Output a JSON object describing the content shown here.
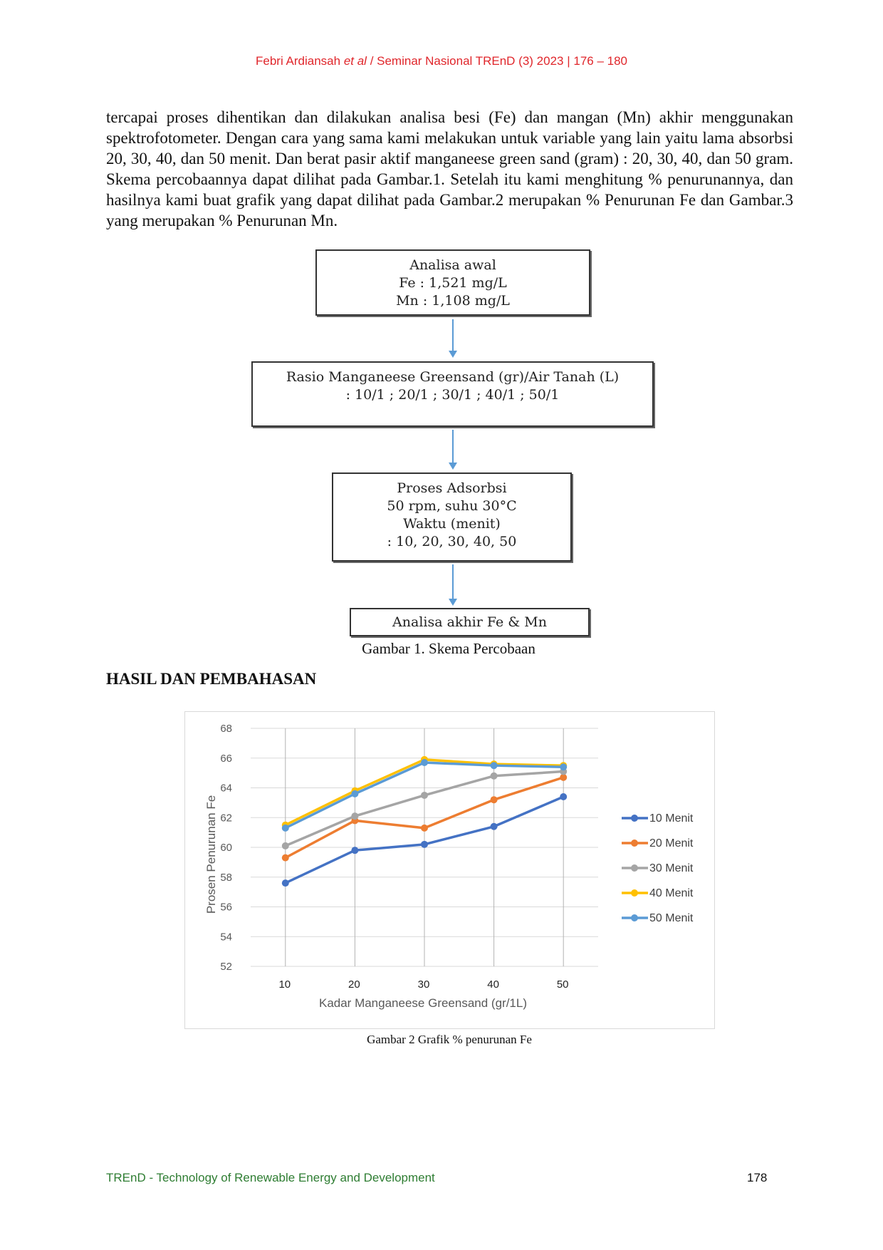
{
  "header": {
    "author": "Febri Ardiansah",
    "et_al": "et al",
    "citation": "/ Seminar Nasional TREnD (3) 2023 | 176 – 180"
  },
  "body": {
    "paragraph": "tercapai proses dihentikan dan dilakukan analisa besi (Fe) dan mangan (Mn) akhir menggunakan spektrofotometer. Dengan cara yang sama kami melakukan untuk variable yang lain yaitu  lama absorbsi 20, 30, 40, dan 50 menit.  Dan berat pasir aktif manganeese green sand (gram) : 20, 30, 40, dan 50 gram. Skema percobaannya dapat dilihat pada Gambar.1. Setelah itu kami menghitung % penurunannya, dan hasilnya kami buat grafik yang dapat dilihat pada Gambar.2 merupakan % Penurunan Fe  dan Gambar.3 yang merupakan % Penurunan Mn."
  },
  "flowchart": {
    "box1": [
      "Analisa awal",
      "Fe  : 1,521  mg/L",
      "Mn : 1,108 mg/L"
    ],
    "box2": [
      "Rasio Manganeese Greensand (gr)/Air Tanah (L)",
      ": 10/1 ; 20/1 ; 30/1 ; 40/1 ; 50/1"
    ],
    "box3": [
      "Proses Adsorbsi",
      "50 rpm,  suhu 30°C",
      "Waktu (menit)",
      ": 10, 20, 30, 40, 50"
    ],
    "box4": [
      "Analisa akhir Fe & Mn"
    ],
    "arrow_color": "#5b9bd5"
  },
  "figure1_caption": "Gambar  1. Skema Percobaan",
  "section_heading": "HASIL DAN PEMBAHASAN",
  "chart_data": {
    "type": "line",
    "title": "",
    "xlabel": "Kadar Manganeese Greensand (gr/1L)",
    "ylabel": "Prosen Penurunan Fe",
    "categories": [
      "10",
      "20",
      "30",
      "40",
      "50"
    ],
    "ylim": [
      52,
      68
    ],
    "yticks": [
      "52",
      "54",
      "56",
      "58",
      "60",
      "62",
      "64",
      "66",
      "68"
    ],
    "grid": true,
    "legend_position": "right",
    "series": [
      {
        "name": "10 Menit",
        "color": "#4472c4",
        "values": [
          57.6,
          59.8,
          60.2,
          61.4,
          63.4
        ]
      },
      {
        "name": "20 Menit",
        "color": "#ed7d31",
        "values": [
          59.3,
          61.8,
          61.3,
          63.2,
          64.7
        ]
      },
      {
        "name": "30 Menit",
        "color": "#a5a5a5",
        "values": [
          60.1,
          62.1,
          63.5,
          64.8,
          65.1
        ]
      },
      {
        "name": "40 Menit",
        "color": "#ffc000",
        "values": [
          61.5,
          63.8,
          65.9,
          65.6,
          65.5
        ]
      },
      {
        "name": "50 Menit",
        "color": "#5b9bd5",
        "values": [
          61.3,
          63.6,
          65.7,
          65.5,
          65.4
        ]
      }
    ]
  },
  "figure2_caption": "Gambar 2 Grafik % penurunan Fe",
  "footer": {
    "journal": "TREnD - Technology of Renewable Energy and Development",
    "page_number": "178"
  }
}
